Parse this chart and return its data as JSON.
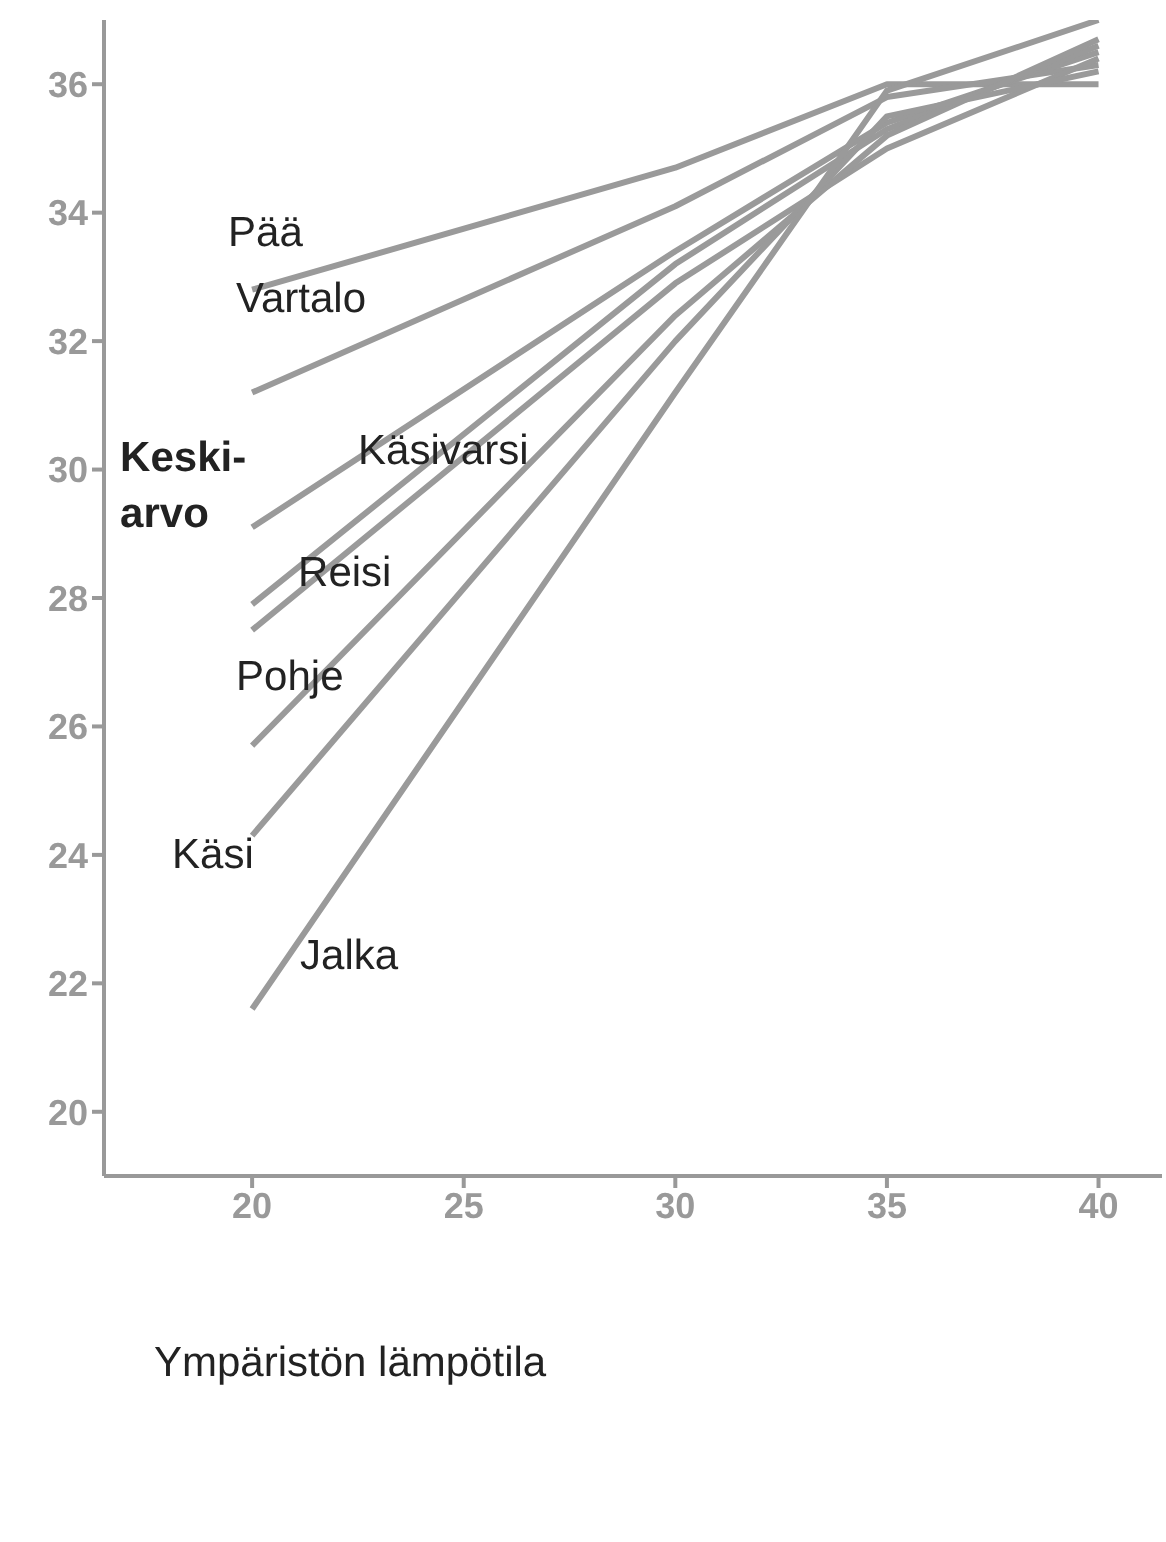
{
  "chart_data": {
    "type": "line",
    "xlabel": "Ympäristön lämpötila",
    "x": [
      20,
      30,
      35,
      40
    ],
    "xlim": [
      16.5,
      41.5
    ],
    "xticks": [
      20,
      25,
      30,
      35,
      40
    ],
    "ylim": [
      19,
      37
    ],
    "yticks": [
      20,
      22,
      24,
      26,
      28,
      30,
      32,
      34,
      36
    ],
    "grid": false,
    "legend": false,
    "marker": "none",
    "line_style": "solid",
    "series": [
      {
        "name": "Pää",
        "color": "#9a9a9a",
        "values": [
          32.8,
          34.7,
          36.0,
          36.0
        ]
      },
      {
        "name": "Vartalo",
        "color": "#9a9a9a",
        "values": [
          31.2,
          34.1,
          35.8,
          36.3
        ]
      },
      {
        "name": "Keski-arvo",
        "color": "#9a9a9a",
        "values": [
          29.1,
          33.4,
          35.4,
          36.5
        ]
      },
      {
        "name": "Käsivarsi",
        "color": "#9a9a9a",
        "values": [
          27.9,
          33.2,
          35.3,
          36.6
        ]
      },
      {
        "name": "Reisi",
        "color": "#9a9a9a",
        "values": [
          27.5,
          32.9,
          35.0,
          36.4
        ]
      },
      {
        "name": "Pohje",
        "color": "#9a9a9a",
        "values": [
          25.7,
          32.4,
          35.2,
          36.7
        ]
      },
      {
        "name": "Käsi",
        "color": "#9a9a9a",
        "values": [
          24.3,
          32.0,
          35.5,
          36.2
        ]
      },
      {
        "name": "Jalka",
        "color": "#9a9a9a",
        "values": [
          21.6,
          31.2,
          35.9,
          37.0
        ]
      }
    ]
  }
}
